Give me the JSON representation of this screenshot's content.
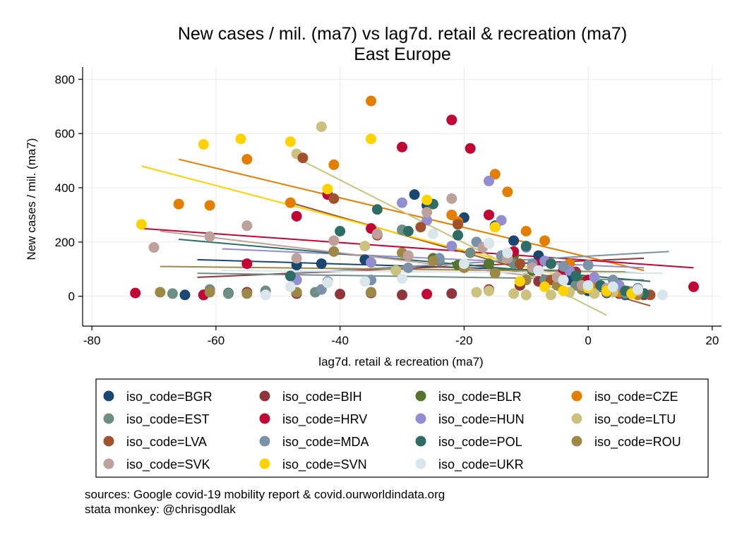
{
  "chart_data": {
    "type": "scatter",
    "title": "New cases / mil. (ma7) vs lag7d. retail & recreation (ma7)",
    "subtitle": "East Europe",
    "xlabel": "lag7d. retail & recreation (ma7)",
    "ylabel": "New cases / mil. (ma7)",
    "xlim": [
      -81.5,
      21.5
    ],
    "ylim": [
      -110,
      845
    ],
    "xticks": [
      -80,
      -60,
      -40,
      -20,
      0,
      20
    ],
    "yticks": [
      0,
      200,
      400,
      600,
      800
    ],
    "grid": true,
    "legend_position": "bottom",
    "notes": [
      "sources: Google covid-19 mobility report & covid.ourworldindata.org",
      "stata monkey: @chrisgodlak"
    ],
    "series": [
      {
        "name": "iso_code=BGR",
        "color": "#1a476f",
        "points": [
          [
            -65,
            5
          ],
          [
            -62,
            5
          ],
          [
            -58,
            12
          ],
          [
            -47,
            115
          ],
          [
            -43,
            120
          ],
          [
            -36,
            135
          ],
          [
            -28,
            375
          ],
          [
            -26,
            335
          ],
          [
            -20,
            290
          ],
          [
            -15,
            260
          ],
          [
            -12,
            205
          ],
          [
            -8,
            150
          ],
          [
            -3,
            60
          ],
          [
            0,
            20
          ],
          [
            3,
            12
          ],
          [
            6,
            5
          ],
          [
            9,
            8
          ]
        ],
        "fit": [
          [
            -63,
            135
          ],
          [
            9,
            85
          ]
        ]
      },
      {
        "name": "iso_code=BIH",
        "color": "#90353b",
        "points": [
          [
            -55,
            15
          ],
          [
            -47,
            10
          ],
          [
            -40,
            8
          ],
          [
            -35,
            12
          ],
          [
            -30,
            5
          ],
          [
            -22,
            10
          ],
          [
            -16,
            25
          ],
          [
            -11,
            40
          ],
          [
            -8,
            55
          ],
          [
            -2,
            90
          ],
          [
            1,
            30
          ],
          [
            5,
            10
          ],
          [
            9,
            5
          ]
        ],
        "fit": [
          [
            -63,
            70
          ],
          [
            9,
            140
          ]
        ]
      },
      {
        "name": "iso_code=BLR",
        "color": "#55752f",
        "points": [
          [
            -25,
            140
          ],
          [
            -21,
            115
          ],
          [
            -16,
            120
          ],
          [
            -12,
            150
          ],
          [
            -9,
            95
          ],
          [
            -5,
            70
          ],
          [
            -1,
            55
          ],
          [
            3,
            25
          ],
          [
            7,
            10
          ]
        ],
        "fit": [
          [
            -22,
            125
          ],
          [
            8,
            30
          ]
        ]
      },
      {
        "name": "iso_code=CZE",
        "color": "#e37e00",
        "points": [
          [
            -66,
            340
          ],
          [
            -61,
            335
          ],
          [
            -55,
            505
          ],
          [
            -48,
            345
          ],
          [
            -41,
            485
          ],
          [
            -35,
            720
          ],
          [
            -22,
            300
          ],
          [
            -21,
            275
          ],
          [
            -15,
            450
          ],
          [
            -13,
            385
          ],
          [
            -10,
            240
          ],
          [
            -7,
            205
          ],
          [
            -3,
            120
          ],
          [
            1,
            45
          ],
          [
            5,
            15
          ],
          [
            8,
            5
          ]
        ],
        "fit": [
          [
            -66,
            505
          ],
          [
            9,
            95
          ]
        ]
      },
      {
        "name": "iso_code=EST",
        "color": "#6e8e84",
        "points": [
          [
            -67,
            10
          ],
          [
            -61,
            25
          ],
          [
            -58,
            10
          ],
          [
            -52,
            20
          ],
          [
            -44,
            15
          ],
          [
            -30,
            245
          ],
          [
            -24,
            130
          ],
          [
            -19,
            160
          ],
          [
            -16,
            300
          ],
          [
            -12,
            120
          ],
          [
            -7,
            60
          ],
          [
            -2,
            40
          ],
          [
            3,
            20
          ],
          [
            6,
            10
          ]
        ],
        "fit": [
          [
            -63,
            85
          ],
          [
            9,
            60
          ]
        ]
      },
      {
        "name": "iso_code=HRV",
        "color": "#c10534",
        "points": [
          [
            -73,
            12
          ],
          [
            -62,
            5
          ],
          [
            -55,
            120
          ],
          [
            -47,
            295
          ],
          [
            -42,
            375
          ],
          [
            -35,
            250
          ],
          [
            -30,
            550
          ],
          [
            -26,
            8
          ],
          [
            -22,
            650
          ],
          [
            -19,
            545
          ],
          [
            -16,
            300
          ],
          [
            -12,
            165
          ],
          [
            -8,
            120
          ],
          [
            -4,
            95
          ],
          [
            0,
            60
          ],
          [
            5,
            40
          ],
          [
            9,
            10
          ],
          [
            17,
            35
          ]
        ],
        "fit": [
          [
            -72,
            250
          ],
          [
            17,
            105
          ]
        ]
      },
      {
        "name": "iso_code=HUN",
        "color": "#938dd2",
        "points": [
          [
            -47,
            60
          ],
          [
            -42,
            55
          ],
          [
            -35,
            125
          ],
          [
            -30,
            345
          ],
          [
            -26,
            280
          ],
          [
            -22,
            185
          ],
          [
            -16,
            425
          ],
          [
            -14,
            280
          ],
          [
            -10,
            180
          ],
          [
            -7,
            130
          ],
          [
            -3,
            95
          ],
          [
            1,
            70
          ],
          [
            5,
            40
          ],
          [
            8,
            20
          ]
        ],
        "fit": [
          [
            -59,
            175
          ],
          [
            9,
            105
          ]
        ]
      },
      {
        "name": "iso_code=LTU",
        "color": "#cac27e",
        "points": [
          [
            -47,
            525
          ],
          [
            -43,
            625
          ],
          [
            -36,
            185
          ],
          [
            -31,
            95
          ],
          [
            -18,
            15
          ],
          [
            -16,
            20
          ],
          [
            -12,
            10
          ],
          [
            -10,
            5
          ],
          [
            -6,
            5
          ],
          [
            -3,
            15
          ],
          [
            1,
            10
          ],
          [
            4,
            15
          ],
          [
            8,
            20
          ]
        ],
        "fit": [
          [
            -47,
            510
          ],
          [
            3,
            -70
          ]
        ]
      },
      {
        "name": "iso_code=LVA",
        "color": "#a0522d",
        "points": [
          [
            -46,
            510
          ],
          [
            -41,
            360
          ],
          [
            -34,
            225
          ],
          [
            -27,
            255
          ],
          [
            -21,
            265
          ],
          [
            -16,
            195
          ],
          [
            -11,
            120
          ],
          [
            -6,
            60
          ],
          [
            -1,
            35
          ],
          [
            3,
            20
          ],
          [
            7,
            10
          ],
          [
            10,
            5
          ]
        ],
        "fit": [
          [
            -48,
            345
          ],
          [
            10,
            -35
          ]
        ]
      },
      {
        "name": "iso_code=MDA",
        "color": "#7b92a8",
        "points": [
          [
            -43,
            25
          ],
          [
            -35,
            60
          ],
          [
            -29,
            105
          ],
          [
            -24,
            140
          ],
          [
            -18,
            200
          ],
          [
            -14,
            150
          ],
          [
            -9,
            120
          ],
          [
            -4,
            110
          ],
          [
            0,
            115
          ],
          [
            4,
            60
          ],
          [
            8,
            30
          ]
        ],
        "fit": [
          [
            -48,
            85
          ],
          [
            13,
            165
          ]
        ]
      },
      {
        "name": "iso_code=POL",
        "color": "#2d6d66",
        "points": [
          [
            -48,
            75
          ],
          [
            -40,
            240
          ],
          [
            -34,
            320
          ],
          [
            -29,
            240
          ],
          [
            -25,
            340
          ],
          [
            -21,
            225
          ],
          [
            -15,
            255
          ],
          [
            -10,
            185
          ],
          [
            -6,
            120
          ],
          [
            -2,
            75
          ],
          [
            2,
            40
          ],
          [
            6,
            20
          ],
          [
            9,
            10
          ]
        ],
        "fit": [
          [
            -66,
            210
          ],
          [
            10,
            55
          ]
        ]
      },
      {
        "name": "iso_code=ROU",
        "color": "#9c8847",
        "points": [
          [
            -69,
            15
          ],
          [
            -61,
            15
          ],
          [
            -55,
            10
          ],
          [
            -47,
            15
          ],
          [
            -41,
            165
          ],
          [
            -35,
            15
          ],
          [
            -30,
            160
          ],
          [
            -25,
            130
          ],
          [
            -20,
            105
          ],
          [
            -15,
            85
          ],
          [
            -10,
            60
          ],
          [
            -5,
            40
          ],
          [
            -1,
            25
          ],
          [
            3,
            15
          ],
          [
            8,
            10
          ]
        ],
        "fit": [
          [
            -69,
            110
          ],
          [
            6,
            90
          ]
        ]
      },
      {
        "name": "iso_code=SVK",
        "color": "#bfa19c",
        "points": [
          [
            -70,
            180
          ],
          [
            -61,
            220
          ],
          [
            -55,
            260
          ],
          [
            -47,
            140
          ],
          [
            -41,
            205
          ],
          [
            -34,
            230
          ],
          [
            -29,
            150
          ],
          [
            -26,
            310
          ],
          [
            -22,
            360
          ],
          [
            -17,
            180
          ],
          [
            -13,
            140
          ],
          [
            -9,
            105
          ],
          [
            -5,
            70
          ],
          [
            -1,
            40
          ],
          [
            3,
            30
          ],
          [
            8,
            20
          ]
        ],
        "fit": [
          [
            -69,
            240
          ],
          [
            9,
            25
          ]
        ]
      },
      {
        "name": "iso_code=SVN",
        "color": "#ffd200",
        "points": [
          [
            -72,
            265
          ],
          [
            -62,
            560
          ],
          [
            -56,
            580
          ],
          [
            -48,
            570
          ],
          [
            -42,
            395
          ],
          [
            -35,
            580
          ],
          [
            -26,
            355
          ],
          [
            -15,
            255
          ],
          [
            -11,
            55
          ],
          [
            -7,
            35
          ],
          [
            -4,
            20
          ],
          [
            0,
            30
          ],
          [
            3,
            20
          ],
          [
            7,
            10
          ]
        ],
        "fit": [
          [
            -72,
            480
          ],
          [
            9,
            -5
          ]
        ]
      },
      {
        "name": "iso_code=UKR",
        "color": "#d9e6eb",
        "points": [
          [
            -52,
            5
          ],
          [
            -48,
            35
          ],
          [
            -42,
            50
          ],
          [
            -36,
            55
          ],
          [
            -30,
            65
          ],
          [
            -25,
            230
          ],
          [
            -20,
            120
          ],
          [
            -16,
            195
          ],
          [
            -13,
            160
          ],
          [
            -8,
            95
          ],
          [
            -4,
            60
          ],
          [
            0,
            40
          ],
          [
            4,
            35
          ],
          [
            8,
            25
          ],
          [
            12,
            5
          ]
        ],
        "fit": [
          [
            -59,
            95
          ],
          [
            12,
            85
          ]
        ]
      }
    ]
  }
}
